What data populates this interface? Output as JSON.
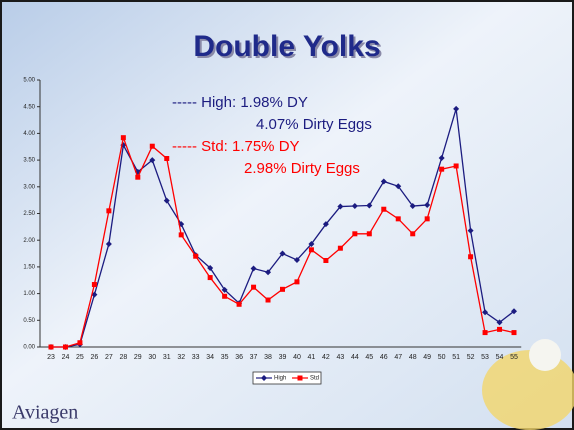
{
  "chart_data": {
    "type": "line",
    "title": "Double Yolks",
    "categories": [
      23,
      24,
      25,
      26,
      27,
      28,
      29,
      30,
      31,
      32,
      33,
      34,
      35,
      36,
      37,
      38,
      39,
      40,
      41,
      42,
      43,
      44,
      45,
      46,
      47,
      48,
      49,
      50,
      51,
      52,
      53,
      54,
      55
    ],
    "series": [
      {
        "name": "High",
        "color": "#1c1c80",
        "marker": "diamond",
        "values": [
          0,
          0,
          0.05,
          0.98,
          1.93,
          3.78,
          3.28,
          3.5,
          2.74,
          2.3,
          1.72,
          1.48,
          1.07,
          0.82,
          1.47,
          1.4,
          1.75,
          1.63,
          1.93,
          2.3,
          2.63,
          2.64,
          2.65,
          3.1,
          3.01,
          2.64,
          2.66,
          3.54,
          4.46,
          2.18,
          0.65,
          0.46,
          0.67
        ]
      },
      {
        "name": "Std",
        "color": "#ff0000",
        "marker": "square",
        "values": [
          0,
          0,
          0.08,
          1.17,
          2.55,
          3.92,
          3.18,
          3.76,
          3.53,
          2.1,
          1.7,
          1.3,
          0.95,
          0.8,
          1.12,
          0.88,
          1.08,
          1.22,
          1.82,
          1.62,
          1.85,
          2.12,
          2.12,
          2.58,
          2.4,
          2.12,
          2.4,
          3.33,
          3.39,
          1.69,
          0.27,
          0.33,
          0.27
        ]
      }
    ],
    "ylim": [
      0,
      5
    ],
    "yticks": [
      {
        "value": 0,
        "label": "0.00"
      },
      {
        "value": 0.5,
        "label": "0.50"
      },
      {
        "value": 1,
        "label": "1.00"
      },
      {
        "value": 1.5,
        "label": "1.50"
      },
      {
        "value": 2,
        "label": "2.00"
      },
      {
        "value": 2.5,
        "label": "2.50"
      },
      {
        "value": 3,
        "label": "3.00"
      },
      {
        "value": 3.5,
        "label": "3.50"
      },
      {
        "value": 4,
        "label": "4.00"
      },
      {
        "value": 4.5,
        "label": "4.50"
      },
      {
        "value": 5,
        "label": "5.00"
      }
    ],
    "annotations": [
      "----- High: 1.98% DY",
      "4.07% Dirty Eggs",
      "----- Std: 1.75% DY",
      "2.98% Dirty Eggs"
    ],
    "logo": "Aviagen"
  }
}
